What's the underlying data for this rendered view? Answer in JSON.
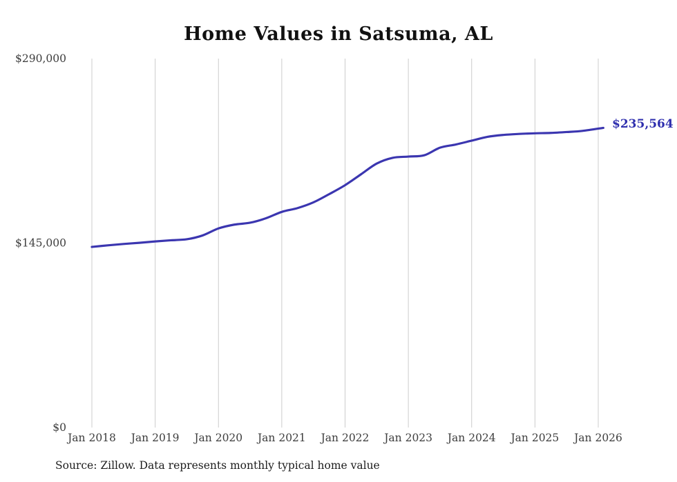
{
  "chart": {
    "title": "Home Values in Satsuma, AL",
    "latest_value_label": "$235,564",
    "source": "Source: Zillow. Data represents monthly typical home value",
    "line_color": "#3b36b0",
    "grid_color": "#cccccc",
    "axis_text_color": "#3d3d3d"
  },
  "chart_data": {
    "type": "line",
    "title": "Home Values in Satsuma, AL",
    "xlabel": "",
    "ylabel": "",
    "x_range": [
      2018,
      2026.17
    ],
    "ylim": [
      0,
      290000
    ],
    "grid": "vertical-only",
    "legend_position": "none",
    "y_ticks": [
      {
        "label": "$290,000",
        "value": 290000
      },
      {
        "label": "$145,000",
        "value": 145000
      },
      {
        "label": "$0",
        "value": 0
      }
    ],
    "x_ticks": [
      {
        "label": "Jan 2018",
        "t": 2018
      },
      {
        "label": "Jan 2019",
        "t": 2019
      },
      {
        "label": "Jan 2020",
        "t": 2020
      },
      {
        "label": "Jan 2021",
        "t": 2021
      },
      {
        "label": "Jan 2022",
        "t": 2022
      },
      {
        "label": "Jan 2023",
        "t": 2023
      },
      {
        "label": "Jan 2024",
        "t": 2024
      },
      {
        "label": "Jan 2025",
        "t": 2025
      },
      {
        "label": "Jan 2026",
        "t": 2026
      }
    ],
    "series": [
      {
        "name": "Typical home value",
        "points": [
          [
            2018.0,
            142000
          ],
          [
            2018.25,
            143200
          ],
          [
            2018.5,
            144300
          ],
          [
            2018.75,
            145200
          ],
          [
            2019.0,
            146300
          ],
          [
            2019.25,
            147200
          ],
          [
            2019.5,
            148000
          ],
          [
            2019.75,
            151000
          ],
          [
            2020.0,
            156500
          ],
          [
            2020.25,
            159500
          ],
          [
            2020.5,
            161000
          ],
          [
            2020.75,
            164500
          ],
          [
            2021.0,
            169500
          ],
          [
            2021.25,
            172500
          ],
          [
            2021.5,
            177000
          ],
          [
            2021.75,
            183500
          ],
          [
            2022.0,
            190500
          ],
          [
            2022.25,
            199000
          ],
          [
            2022.5,
            207500
          ],
          [
            2022.75,
            212000
          ],
          [
            2023.0,
            213000
          ],
          [
            2023.25,
            214000
          ],
          [
            2023.5,
            220000
          ],
          [
            2023.75,
            222500
          ],
          [
            2024.0,
            225500
          ],
          [
            2024.25,
            228500
          ],
          [
            2024.5,
            230000
          ],
          [
            2024.75,
            230800
          ],
          [
            2025.0,
            231300
          ],
          [
            2025.25,
            231600
          ],
          [
            2025.5,
            232300
          ],
          [
            2025.75,
            233200
          ],
          [
            2026.08,
            235564
          ]
        ]
      }
    ],
    "latest_value": 235564,
    "latest_value_label": "$235,564"
  }
}
